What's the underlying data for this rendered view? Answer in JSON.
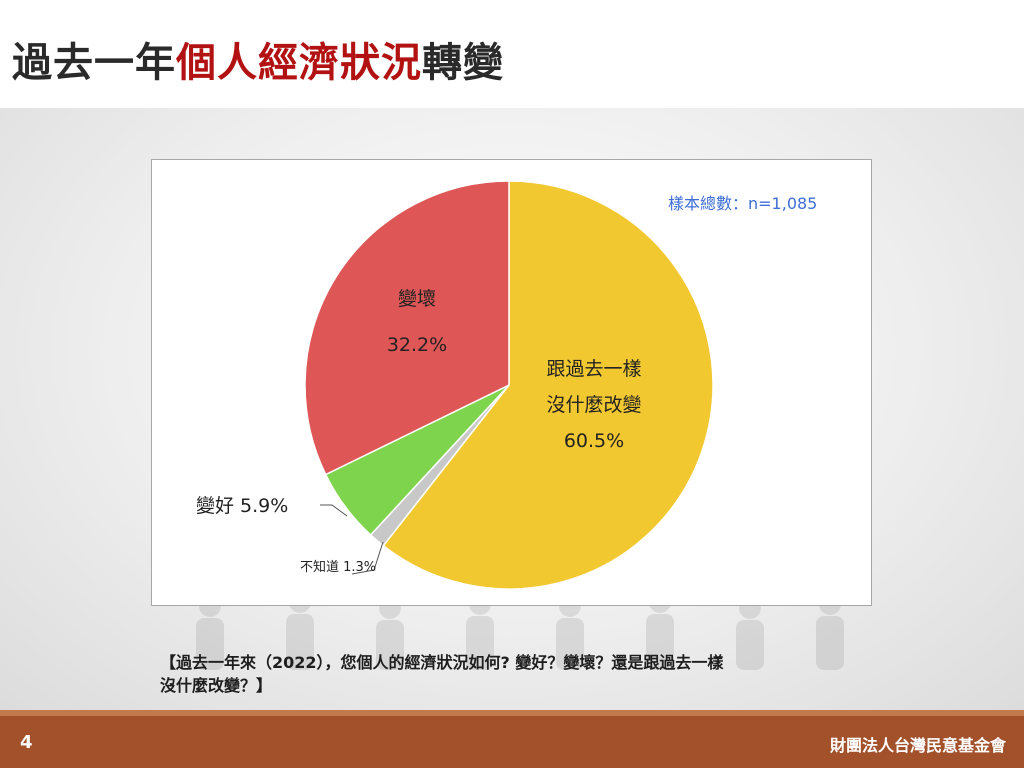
{
  "title": {
    "prefix": "過去一年",
    "highlight": "個人經濟狀況",
    "suffix": "轉變"
  },
  "sample_label": "樣本總數：n=1,085",
  "question": {
    "line1": "【過去一年來（2022），您個人的經濟狀況如何? 變好？變壞？還是跟過去一樣",
    "line2": "沒什麼改變？】"
  },
  "footer": {
    "page_number": "4",
    "organization": "財團法人台灣民意基金會"
  },
  "colors": {
    "title_highlight": "#b31212",
    "footer": "#a2512b",
    "sample_text": "#3f6fd4"
  },
  "chart_data": {
    "type": "pie",
    "start_angle_deg": 0,
    "direction": "clockwise",
    "slices": [
      {
        "label_lines": [
          "跟過去一樣",
          "沒什麼改變"
        ],
        "value": 60.5,
        "value_text": "60.5%",
        "color": "#f2c830"
      },
      {
        "label_lines": [
          "不知道"
        ],
        "value": 1.3,
        "value_text": "1.3%",
        "color": "#c8c8c8"
      },
      {
        "label_lines": [
          "變好"
        ],
        "value": 5.9,
        "value_text": "5.9%",
        "color": "#7ed44c"
      },
      {
        "label_lines": [
          "變壞"
        ],
        "value": 32.2,
        "value_text": "32.2%",
        "color": "#de5656"
      }
    ]
  }
}
